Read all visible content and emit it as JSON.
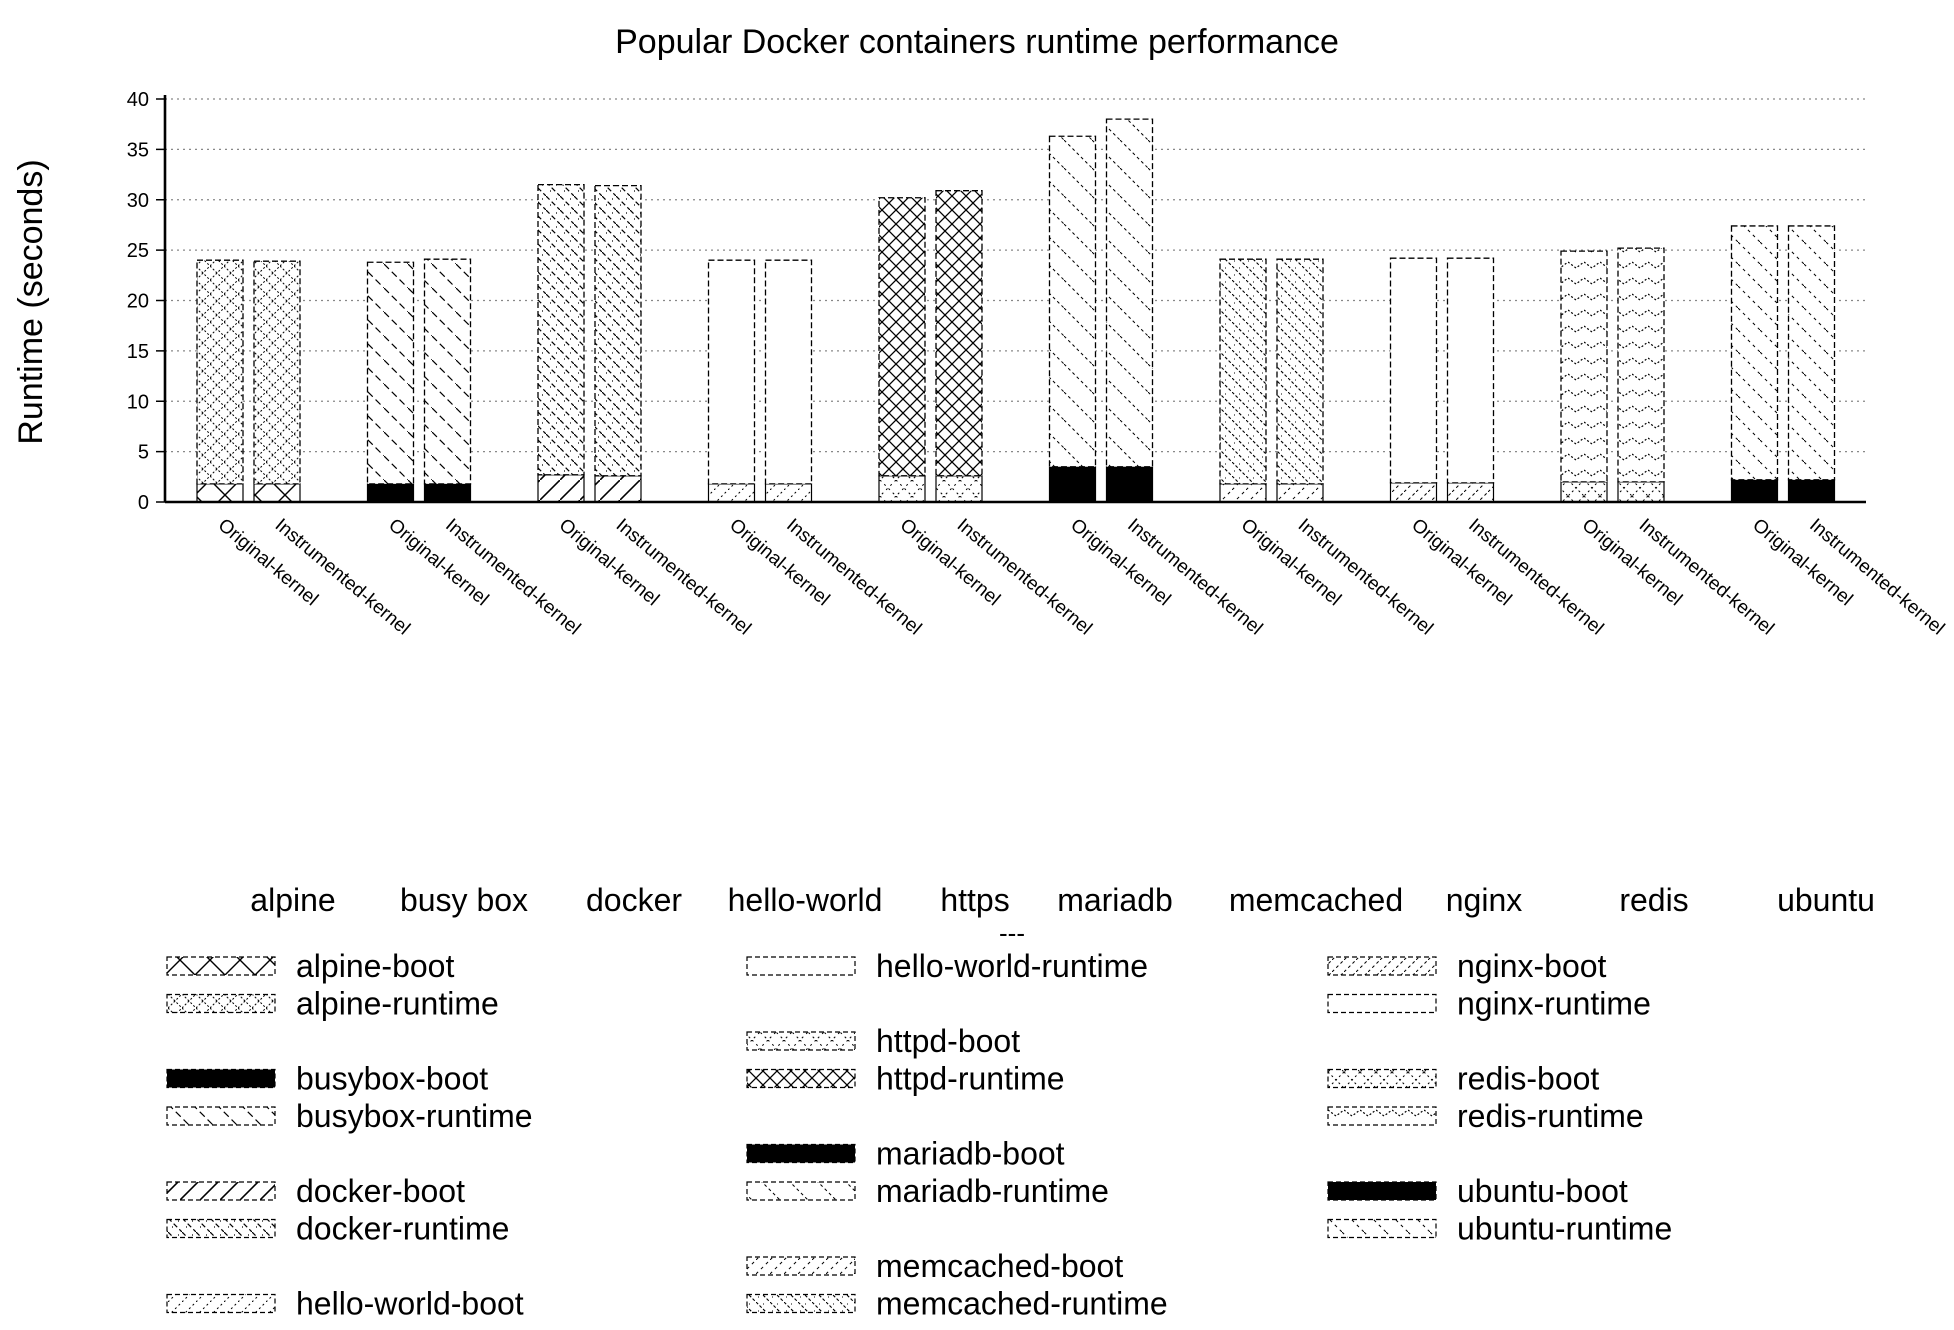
{
  "chart_data": {
    "type": "bar",
    "title": "Popular Docker containers runtime performance",
    "ylabel": "Runtime (seconds)",
    "xlabel": "",
    "ylim": [
      0,
      40
    ],
    "yticks": [
      0,
      5,
      10,
      15,
      20,
      25,
      30,
      35,
      40
    ],
    "grid": true,
    "legend_position": "bottom",
    "stacked": true,
    "bar_labels": [
      "Original-kernel",
      "Instrumented-kernel"
    ],
    "groups": [
      {
        "name": "alpine",
        "boot_series": "alpine-boot",
        "runtime_series": "alpine-runtime",
        "boot": [
          1.8,
          1.8
        ],
        "runtime": [
          22.2,
          22.1
        ]
      },
      {
        "name": "busy box",
        "boot_series": "busybox-boot",
        "runtime_series": "busybox-runtime",
        "boot": [
          1.8,
          1.8
        ],
        "runtime": [
          22.0,
          22.3
        ]
      },
      {
        "name": "docker",
        "boot_series": "docker-boot",
        "runtime_series": "docker-runtime",
        "boot": [
          2.7,
          2.6
        ],
        "runtime": [
          28.8,
          28.8
        ]
      },
      {
        "name": "hello-world",
        "boot_series": "hello-world-boot",
        "runtime_series": "hello-world-runtime",
        "boot": [
          1.8,
          1.8
        ],
        "runtime": [
          22.2,
          22.2
        ]
      },
      {
        "name": "https",
        "boot_series": "httpd-boot",
        "runtime_series": "httpd-runtime",
        "boot": [
          2.6,
          2.6
        ],
        "runtime": [
          27.6,
          28.3
        ]
      },
      {
        "name": "mariadb",
        "boot_series": "mariadb-boot",
        "runtime_series": "mariadb-runtime",
        "boot": [
          3.5,
          3.5
        ],
        "runtime": [
          32.8,
          34.5
        ]
      },
      {
        "name": "memcached",
        "boot_series": "memcached-boot",
        "runtime_series": "memcached-runtime",
        "boot": [
          1.8,
          1.8
        ],
        "runtime": [
          22.3,
          22.3
        ]
      },
      {
        "name": "nginx",
        "boot_series": "nginx-boot",
        "runtime_series": "nginx-runtime",
        "boot": [
          1.9,
          1.9
        ],
        "runtime": [
          22.3,
          22.3
        ]
      },
      {
        "name": "redis",
        "boot_series": "redis-boot",
        "runtime_series": "redis-runtime",
        "boot": [
          2.0,
          2.0
        ],
        "runtime": [
          22.9,
          23.2
        ]
      },
      {
        "name": "ubuntu",
        "boot_series": "ubuntu-boot",
        "runtime_series": "ubuntu-runtime",
        "boot": [
          2.2,
          2.2
        ],
        "runtime": [
          25.2,
          25.2
        ]
      }
    ],
    "separator_label": "---",
    "legend_columns": [
      [
        {
          "label": "alpine-boot",
          "pattern": "alpine-boot"
        },
        {
          "label": "alpine-runtime",
          "pattern": "alpine-runtime"
        },
        null,
        {
          "label": "busybox-boot",
          "pattern": "busybox-boot"
        },
        {
          "label": "busybox-runtime",
          "pattern": "busybox-runtime"
        },
        null,
        {
          "label": "docker-boot",
          "pattern": "docker-boot"
        },
        {
          "label": "docker-runtime",
          "pattern": "docker-runtime"
        },
        null,
        {
          "label": "hello-world-boot",
          "pattern": "hello-world-boot"
        }
      ],
      [
        {
          "label": "hello-world-runtime",
          "pattern": "hello-world-runtime"
        },
        null,
        {
          "label": "httpd-boot",
          "pattern": "httpd-boot"
        },
        {
          "label": "httpd-runtime",
          "pattern": "httpd-runtime"
        },
        null,
        {
          "label": "mariadb-boot",
          "pattern": "mariadb-boot"
        },
        {
          "label": "mariadb-runtime",
          "pattern": "mariadb-runtime"
        },
        null,
        {
          "label": "memcached-boot",
          "pattern": "memcached-boot"
        },
        {
          "label": "memcached-runtime",
          "pattern": "memcached-runtime"
        }
      ],
      [
        {
          "label": "nginx-boot",
          "pattern": "nginx-boot"
        },
        {
          "label": "nginx-runtime",
          "pattern": "nginx-runtime"
        },
        null,
        {
          "label": "redis-boot",
          "pattern": "redis-boot"
        },
        {
          "label": "redis-runtime",
          "pattern": "redis-runtime"
        },
        null,
        {
          "label": "ubuntu-boot",
          "pattern": "ubuntu-boot"
        },
        {
          "label": "ubuntu-runtime",
          "pattern": "ubuntu-runtime"
        }
      ]
    ],
    "colors": {
      "ink": "#000000",
      "grid": "#888888",
      "fill": "#ffffff"
    }
  }
}
